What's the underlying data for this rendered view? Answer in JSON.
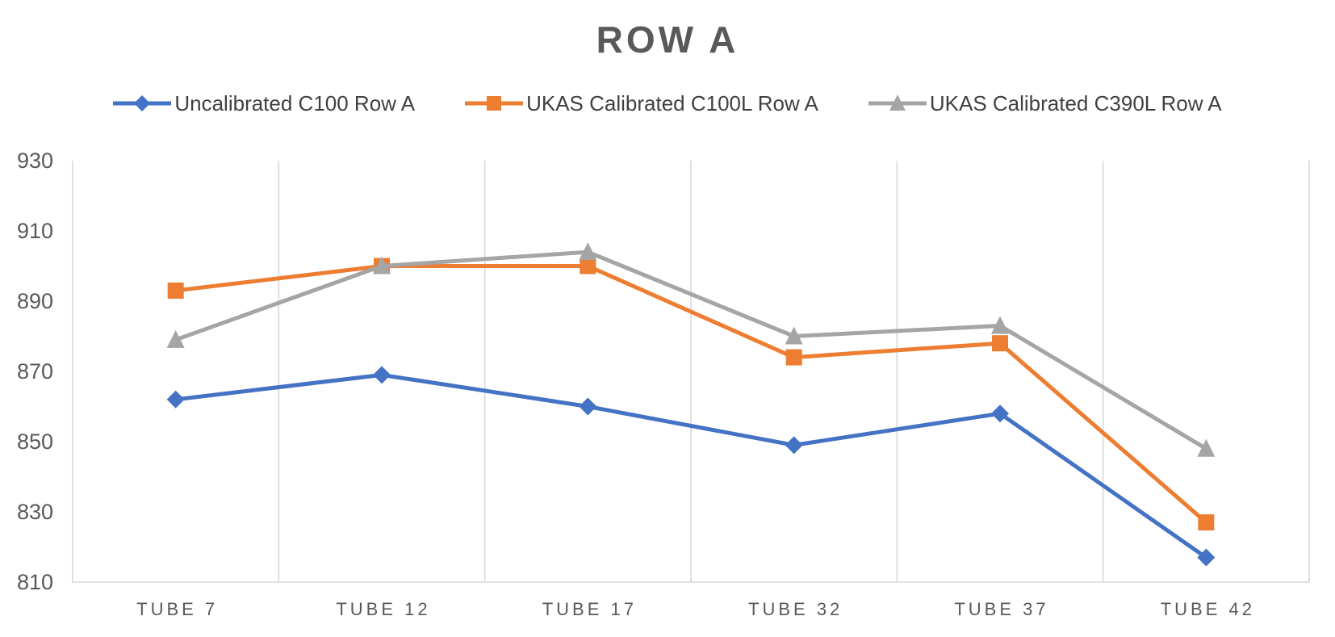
{
  "chart_data": {
    "type": "line",
    "title": "ROW A",
    "xlabel": "",
    "ylabel": "",
    "categories": [
      "TUBE 7",
      "TUBE 12",
      "TUBE 17",
      "TUBE 32",
      "TUBE 37",
      "TUBE 42"
    ],
    "series": [
      {
        "name": "Uncalibrated C100 Row A",
        "color": "#4472C4",
        "marker": "diamond",
        "values": [
          862,
          869,
          860,
          849,
          858,
          817
        ]
      },
      {
        "name": "UKAS Calibrated C100L Row A",
        "color": "#ED7D31",
        "marker": "square",
        "values": [
          893,
          900,
          900,
          874,
          878,
          827
        ]
      },
      {
        "name": "UKAS Calibrated C390L Row A",
        "color": "#A5A5A5",
        "marker": "triangle",
        "values": [
          879,
          900,
          904,
          880,
          883,
          848
        ]
      }
    ],
    "ylim": [
      810,
      930
    ],
    "yticks": [
      810,
      830,
      850,
      870,
      890,
      910,
      930
    ],
    "grid": "vertical-only",
    "legend_position": "top",
    "colors": {
      "title": "#595959",
      "axis_labels": "#595959",
      "gridline": "#D9D9D9",
      "axis_line": "#D9D9D9"
    }
  }
}
